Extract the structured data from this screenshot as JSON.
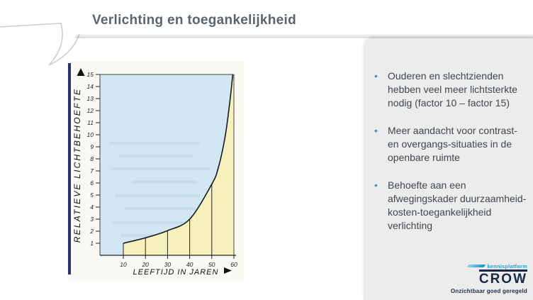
{
  "slide": {
    "title": "Verlichting en toegankelijkheid"
  },
  "ui": {
    "bullet_glyph": "•"
  },
  "bullets": [
    {
      "text": "Ouderen en slechtzienden hebben veel meer lichtsterkte nodig (factor 10 – factor 15)"
    },
    {
      "text": "Meer aandacht voor contrast- en overgangs-situaties in de openbare ruimte"
    },
    {
      "text": "Behoefte aan een afwegingskader duurzaamheid-kosten-toegankelijkheid verlichting"
    }
  ],
  "logo": {
    "platform": "kennisplatform",
    "name": "CROW",
    "tagline": "Onzichtbaar goed geregeld",
    "accent_color": "#2aa0d8",
    "navy_color": "#182948"
  },
  "chart_data": {
    "type": "area",
    "title": "",
    "xlabel": "LEEFTIJD IN JAREN",
    "ylabel": "RELATIEVE LICHTBEHOEFTE",
    "x": [
      10,
      20,
      30,
      40,
      50,
      53,
      56,
      58,
      59.5
    ],
    "y": [
      1,
      1.45,
      2.05,
      3,
      5.9,
      7.3,
      9.8,
      12.5,
      15
    ],
    "xticks": [
      10,
      20,
      30,
      40,
      50,
      60
    ],
    "yticks": [
      1,
      2,
      3,
      4,
      5,
      6,
      7,
      8,
      9,
      10,
      11,
      12,
      13,
      14,
      15
    ],
    "xlim": [
      0,
      60
    ],
    "ylim": [
      0,
      15
    ],
    "droplines": [
      10,
      20,
      30,
      40,
      50
    ],
    "grid": false,
    "legend": null,
    "area_above_color": "#d2e6f3",
    "area_below_color": "#f7f2bb",
    "curve_color": "#1a1a1a",
    "spine_bar_color": "#29326f"
  }
}
